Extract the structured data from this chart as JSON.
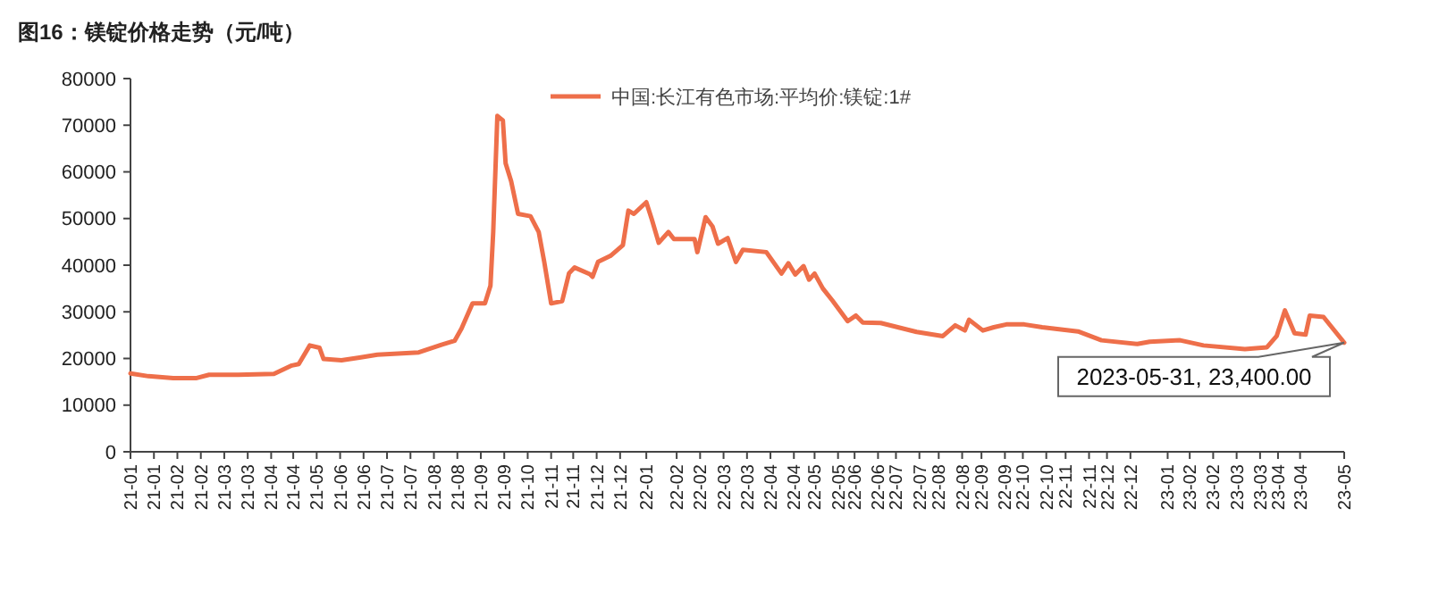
{
  "chart_data": {
    "type": "line",
    "title": "图16：镁锭价格走势（元/吨）",
    "legend": "top",
    "xlim": [
      "2021-01-01",
      "2023-05-31"
    ],
    "ylim": [
      0,
      80000
    ],
    "yticks": [
      0,
      10000,
      20000,
      30000,
      40000,
      50000,
      60000,
      70000,
      80000
    ],
    "xticks": [
      {
        "value": "2021-01-01",
        "label": "21-01"
      },
      {
        "value": "2021-01-18",
        "label": "21-01"
      },
      {
        "value": "2021-02-04",
        "label": "21-02"
      },
      {
        "value": "2021-02-21",
        "label": "21-02"
      },
      {
        "value": "2021-03-10",
        "label": "21-03"
      },
      {
        "value": "2021-03-27",
        "label": "21-03"
      },
      {
        "value": "2021-04-13",
        "label": "21-04"
      },
      {
        "value": "2021-04-29",
        "label": "21-04"
      },
      {
        "value": "2021-05-16",
        "label": "21-05"
      },
      {
        "value": "2021-06-02",
        "label": "21-06"
      },
      {
        "value": "2021-06-19",
        "label": "21-06"
      },
      {
        "value": "2021-07-06",
        "label": "21-07"
      },
      {
        "value": "2021-07-23",
        "label": "21-07"
      },
      {
        "value": "2021-08-09",
        "label": "21-08"
      },
      {
        "value": "2021-08-26",
        "label": "21-08"
      },
      {
        "value": "2021-09-12",
        "label": "21-09"
      },
      {
        "value": "2021-09-29",
        "label": "21-09"
      },
      {
        "value": "2021-10-16",
        "label": "21-10"
      },
      {
        "value": "2021-11-02",
        "label": "21-11"
      },
      {
        "value": "2021-11-18",
        "label": "21-11"
      },
      {
        "value": "2021-12-05",
        "label": "21-12"
      },
      {
        "value": "2021-12-22",
        "label": "21-12"
      },
      {
        "value": "2022-01-10",
        "label": "22-01"
      },
      {
        "value": "2022-02-01",
        "label": "22-02"
      },
      {
        "value": "2022-02-18",
        "label": "22-02"
      },
      {
        "value": "2022-03-07",
        "label": "22-03"
      },
      {
        "value": "2022-03-24",
        "label": "22-03"
      },
      {
        "value": "2022-04-10",
        "label": "22-04"
      },
      {
        "value": "2022-04-27",
        "label": "22-04"
      },
      {
        "value": "2022-05-12",
        "label": "22-05"
      },
      {
        "value": "2022-05-29",
        "label": "22-05"
      },
      {
        "value": "2022-06-10",
        "label": "22-06"
      },
      {
        "value": "2022-06-27",
        "label": "22-06"
      },
      {
        "value": "2022-07-10",
        "label": "22-07"
      },
      {
        "value": "2022-07-27",
        "label": "22-07"
      },
      {
        "value": "2022-08-10",
        "label": "22-08"
      },
      {
        "value": "2022-08-27",
        "label": "22-08"
      },
      {
        "value": "2022-09-10",
        "label": "22-09"
      },
      {
        "value": "2022-09-27",
        "label": "22-09"
      },
      {
        "value": "2022-10-10",
        "label": "22-10"
      },
      {
        "value": "2022-10-27",
        "label": "22-10"
      },
      {
        "value": "2022-11-10",
        "label": "22-11"
      },
      {
        "value": "2022-11-27",
        "label": "22-11"
      },
      {
        "value": "2022-12-10",
        "label": "22-12"
      },
      {
        "value": "2022-12-27",
        "label": "22-12"
      },
      {
        "value": "2023-01-23",
        "label": "23-01"
      },
      {
        "value": "2023-02-08",
        "label": "23-02"
      },
      {
        "value": "2023-02-25",
        "label": "23-02"
      },
      {
        "value": "2023-03-14",
        "label": "23-03"
      },
      {
        "value": "2023-03-31",
        "label": "23-03"
      },
      {
        "value": "2023-04-13",
        "label": "23-04"
      },
      {
        "value": "2023-04-29",
        "label": "23-04"
      },
      {
        "value": "2023-05-31",
        "label": "23-05"
      }
    ],
    "annotations": [
      {
        "text": "2023-05-31, 23,400.00",
        "x": "2023-05-31",
        "y": 23400
      }
    ],
    "series": [
      {
        "name": "中国:长江有色市场:平均价:镁锭:1#",
        "color": "#ee6f4a",
        "x": [
          "2021-01-01",
          "2021-01-14",
          "2021-02-01",
          "2021-02-18",
          "2021-02-27",
          "2021-03-20",
          "2021-04-15",
          "2021-04-28",
          "2021-05-03",
          "2021-05-11",
          "2021-05-18",
          "2021-05-21",
          "2021-06-03",
          "2021-06-16",
          "2021-06-29",
          "2021-07-29",
          "2021-08-15",
          "2021-08-24",
          "2021-08-29",
          "2021-09-06",
          "2021-09-15",
          "2021-09-19",
          "2021-09-21",
          "2021-09-24",
          "2021-09-28",
          "2021-09-30",
          "2021-10-04",
          "2021-10-09",
          "2021-10-18",
          "2021-10-24",
          "2021-10-28",
          "2021-11-02",
          "2021-11-10",
          "2021-11-15",
          "2021-11-19",
          "2021-11-30",
          "2021-12-02",
          "2021-12-06",
          "2021-12-15",
          "2021-12-24",
          "2021-12-28",
          "2022-01-01",
          "2022-01-10",
          "2022-01-14",
          "2022-01-19",
          "2022-01-26",
          "2022-01-30",
          "2022-02-14",
          "2022-02-16",
          "2022-02-22",
          "2022-02-27",
          "2022-03-03",
          "2022-03-10",
          "2022-03-16",
          "2022-03-21",
          "2022-04-07",
          "2022-04-18",
          "2022-04-23",
          "2022-04-28",
          "2022-05-04",
          "2022-05-08",
          "2022-05-12",
          "2022-05-18",
          "2022-05-25",
          "2022-06-05",
          "2022-06-11",
          "2022-06-16",
          "2022-06-29",
          "2022-07-25",
          "2022-08-13",
          "2022-08-22",
          "2022-08-29",
          "2022-09-01",
          "2022-09-11",
          "2022-09-19",
          "2022-09-28",
          "2022-10-11",
          "2022-10-24",
          "2022-11-19",
          "2022-12-06",
          "2023-01-01",
          "2023-01-10",
          "2023-02-01",
          "2023-02-18",
          "2023-03-20",
          "2023-04-05",
          "2023-04-12",
          "2023-04-18",
          "2023-04-25",
          "2023-05-03",
          "2023-05-06",
          "2023-05-16",
          "2023-05-31"
        ],
        "values": [
          16800,
          16200,
          15800,
          15800,
          16500,
          16500,
          16700,
          18500,
          18800,
          22800,
          22300,
          19900,
          19600,
          20200,
          20800,
          21300,
          23000,
          23800,
          26400,
          31800,
          31800,
          35600,
          47100,
          72000,
          71000,
          61800,
          58000,
          51000,
          50500,
          47100,
          40700,
          31800,
          32300,
          38300,
          39500,
          38100,
          37500,
          40700,
          42000,
          44300,
          51700,
          51000,
          53500,
          49800,
          44800,
          47100,
          45600,
          45600,
          42800,
          50300,
          48300,
          44600,
          45800,
          40700,
          43300,
          42800,
          38200,
          40400,
          38000,
          39800,
          36900,
          38200,
          35000,
          32400,
          28000,
          29200,
          27700,
          27600,
          25700,
          24800,
          27100,
          26000,
          28300,
          26000,
          26700,
          27300,
          27300,
          26700,
          25800,
          23900,
          23100,
          23600,
          23900,
          22800,
          22000,
          22400,
          24800,
          30300,
          25400,
          25100,
          29200,
          28900,
          23400
        ]
      }
    ]
  }
}
